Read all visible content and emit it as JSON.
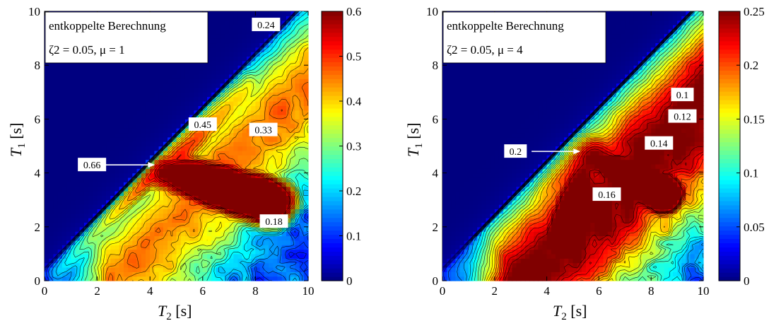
{
  "chart_data": [
    {
      "type": "heatmap",
      "title": "",
      "xlabel": "T2 [s]",
      "ylabel": "T1 [s]",
      "xlim": [
        0,
        10
      ],
      "ylim": [
        0,
        10
      ],
      "xticks": [
        "0",
        "2",
        "4",
        "6",
        "8",
        "10"
      ],
      "yticks": [
        "0",
        "2",
        "4",
        "6",
        "8",
        "10"
      ],
      "colormap": "jet",
      "colorbar": {
        "min": 0,
        "max": 0.6,
        "ticks": [
          "0",
          "0.1",
          "0.2",
          "0.3",
          "0.4",
          "0.5",
          "0.6"
        ]
      },
      "legend_box": {
        "line1": "entkoppelte Berechnung",
        "line2": "ζ2 = 0.05, μ = 1"
      },
      "contour_labels": [
        {
          "text": "0.24",
          "x": 8.4,
          "y": 9.5
        },
        {
          "text": "0.45",
          "x": 6.0,
          "y": 5.8
        },
        {
          "text": "0.33",
          "x": 8.3,
          "y": 5.6
        },
        {
          "text": "0.66",
          "x": 1.8,
          "y": 4.3
        },
        {
          "text": "0.18",
          "x": 8.7,
          "y": 2.2
        }
      ],
      "peak": {
        "x": 4.3,
        "y": 4.3,
        "value": 0.66
      },
      "ridges": [
        {
          "x1": 7.6,
          "y1": 7.4,
          "value": 0.42,
          "width": 1.2
        },
        {
          "x1": 8.5,
          "y1": 3.0,
          "value": 0.3,
          "width": 1.3
        }
      ]
    },
    {
      "type": "heatmap",
      "title": "",
      "xlabel": "T2 [s]",
      "ylabel": "T1 [s]",
      "xlim": [
        0,
        10
      ],
      "ylim": [
        0,
        10
      ],
      "xticks": [
        "0",
        "2",
        "4",
        "6",
        "8",
        "10"
      ],
      "yticks": [
        "0",
        "2",
        "4",
        "6",
        "8",
        "10"
      ],
      "colormap": "jet",
      "colorbar": {
        "min": 0,
        "max": 0.25,
        "ticks": [
          "0",
          "0.05",
          "0.1",
          "0.15",
          "0.2",
          "0.25"
        ]
      },
      "legend_box": {
        "line1": "entkoppelte Berechnung",
        "line2": "ζ2 = 0.05, μ = 4"
      },
      "contour_labels": [
        {
          "text": "0.1",
          "x": 9.2,
          "y": 6.9
        },
        {
          "text": "0.12",
          "x": 9.2,
          "y": 6.1
        },
        {
          "text": "0.14",
          "x": 8.3,
          "y": 5.1
        },
        {
          "text": "0.2",
          "x": 2.8,
          "y": 4.8
        },
        {
          "text": "0.16",
          "x": 6.3,
          "y": 3.2
        }
      ],
      "peak": {
        "x": 5.4,
        "y": 4.8,
        "value": 0.2
      },
      "ridges": [
        {
          "x1": 4.6,
          "y1": 1.7,
          "value": 0.19,
          "width": 1.4
        },
        {
          "x1": 8.4,
          "y1": 3.3,
          "value": 0.16,
          "width": 1.1
        }
      ]
    }
  ]
}
